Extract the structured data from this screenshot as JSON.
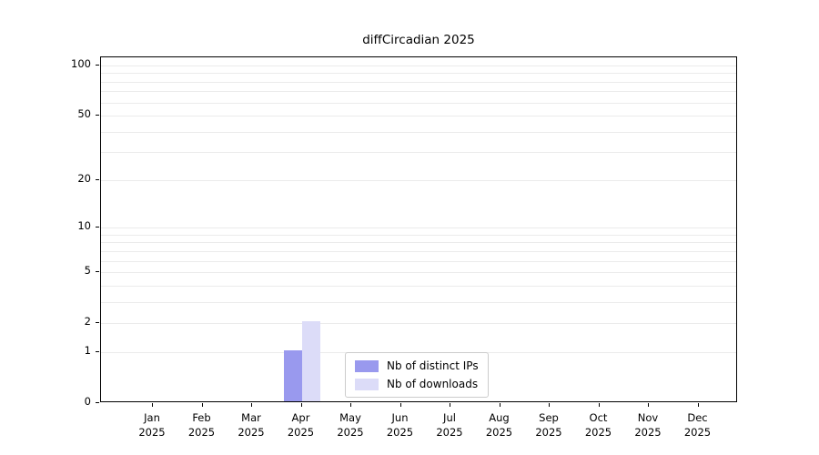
{
  "chart_data": {
    "type": "bar",
    "title": "diffCircadian 2025",
    "x_tick_labels": [
      [
        "Jan",
        "2025"
      ],
      [
        "Feb",
        "2025"
      ],
      [
        "Mar",
        "2025"
      ],
      [
        "Apr",
        "2025"
      ],
      [
        "May",
        "2025"
      ],
      [
        "Jun",
        "2025"
      ],
      [
        "Jul",
        "2025"
      ],
      [
        "Aug",
        "2025"
      ],
      [
        "Sep",
        "2025"
      ],
      [
        "Oct",
        "2025"
      ],
      [
        "Nov",
        "2025"
      ],
      [
        "Dec",
        "2025"
      ]
    ],
    "series": [
      {
        "name": "Nb of distinct IPs",
        "color": "#9999ee",
        "values": [
          0,
          0,
          0,
          1,
          0,
          0,
          0,
          0,
          0,
          0,
          0,
          0
        ]
      },
      {
        "name": "Nb of downloads",
        "color": "#dcdcf8",
        "values": [
          0,
          0,
          0,
          2,
          0,
          0,
          0,
          0,
          0,
          0,
          0,
          0
        ]
      }
    ],
    "y_ticks": [
      0,
      1,
      2,
      5,
      10,
      20,
      50,
      100
    ],
    "y_scale": "log1p",
    "ylim": [
      0,
      112
    ],
    "grid": true,
    "grid_values": [
      1,
      2,
      3,
      4,
      5,
      6,
      7,
      8,
      9,
      10,
      20,
      30,
      40,
      50,
      60,
      70,
      80,
      90,
      100
    ],
    "legend": {
      "position": "bottom-center-inside",
      "entries": [
        "Nb of distinct IPs",
        "Nb of downloads"
      ]
    }
  }
}
